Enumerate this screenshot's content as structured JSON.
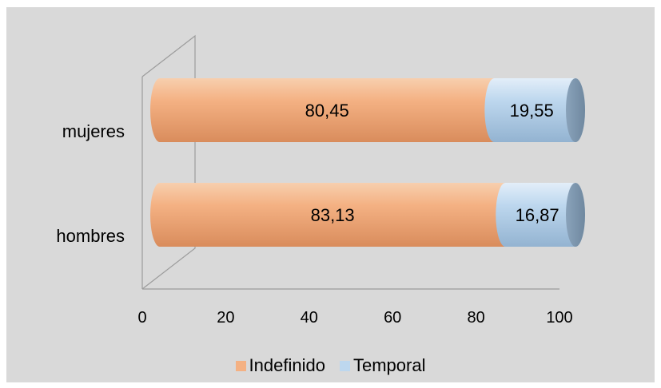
{
  "chart_data": {
    "type": "bar",
    "orientation": "horizontal",
    "stacked": true,
    "style": "3d-cylinder",
    "categories": [
      "mujeres",
      "hombres"
    ],
    "series": [
      {
        "name": "Indefinido",
        "color": "#f4b183",
        "values": [
          80.45,
          83.13
        ],
        "labels": [
          "80,45",
          "83,13"
        ]
      },
      {
        "name": "Temporal",
        "color": "#bdd7ee",
        "values": [
          19.55,
          16.87
        ],
        "labels": [
          "19,55",
          "16,87"
        ]
      }
    ],
    "xlim": [
      0,
      100
    ],
    "xticks": [
      "0",
      "20",
      "40",
      "60",
      "80",
      "100"
    ],
    "grid": false,
    "legend_position": "bottom",
    "background": "#d9d9d9"
  }
}
